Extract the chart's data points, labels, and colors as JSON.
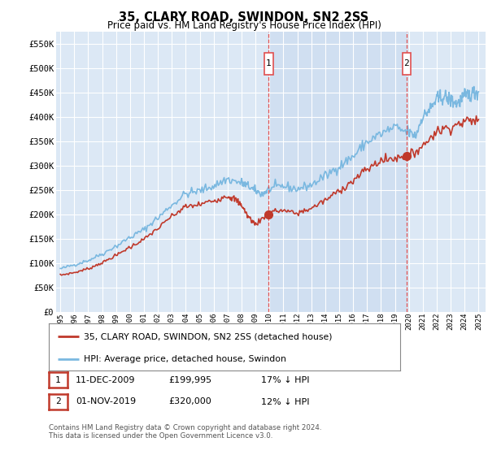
{
  "title": "35, CLARY ROAD, SWINDON, SN2 2SS",
  "subtitle": "Price paid vs. HM Land Registry's House Price Index (HPI)",
  "hpi_label": "HPI: Average price, detached house, Swindon",
  "property_label": "35, CLARY ROAD, SWINDON, SN2 2SS (detached house)",
  "footnote": "Contains HM Land Registry data © Crown copyright and database right 2024.\nThis data is licensed under the Open Government Licence v3.0.",
  "ann1_date": "11-DEC-2009",
  "ann1_price": "£199,995",
  "ann1_hpi": "17% ↓ HPI",
  "ann1_x": 2009.95,
  "ann1_y": 199995,
  "ann2_date": "01-NOV-2019",
  "ann2_price": "£320,000",
  "ann2_hpi": "12% ↓ HPI",
  "ann2_x": 2019.83,
  "ann2_y": 320000,
  "ylim": [
    0,
    575000
  ],
  "yticks": [
    0,
    50000,
    100000,
    150000,
    200000,
    250000,
    300000,
    350000,
    400000,
    450000,
    500000,
    550000
  ],
  "xlim_left": 1994.7,
  "xlim_right": 2025.5,
  "plot_bg": "#dce8f5",
  "grid_color": "#ffffff",
  "hpi_color": "#7ab8e0",
  "property_color": "#c0392b",
  "vline_color": "#e05050",
  "shade_color": "#c5d8ee"
}
